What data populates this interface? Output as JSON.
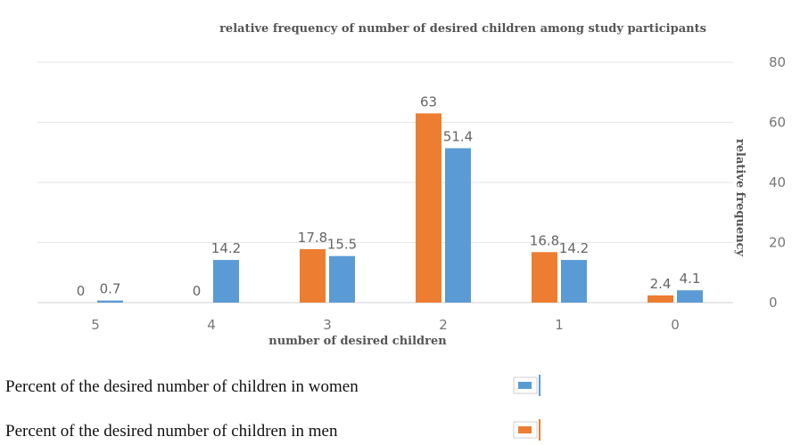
{
  "chart_data": {
    "type": "bar",
    "title": "relative frequency of number of desired children among study participants",
    "xlabel": "number of desired children",
    "ylabel": "relative frequency",
    "categories": [
      "5",
      "4",
      "3",
      "2",
      "1",
      "0"
    ],
    "ylim": [
      0,
      80
    ],
    "yticks": [
      0,
      20,
      40,
      60,
      80
    ],
    "series": [
      {
        "name": "Percent of the desired number of children in men",
        "color": "#ed7d31",
        "values": [
          0,
          0,
          17.8,
          63,
          16.8,
          2.4
        ],
        "labels": [
          "0",
          "0",
          "17.8",
          "63",
          "16.8",
          "2.4"
        ]
      },
      {
        "name": "Percent of the desired number of children in women",
        "color": "#5b9bd5",
        "values": [
          0.7,
          14.2,
          15.5,
          51.4,
          14.2,
          4.1
        ],
        "labels": [
          "0.7",
          "14.2",
          "15.5",
          "51.4",
          "14.2",
          "4.1"
        ]
      }
    ],
    "grid": true,
    "legend_position": "bottom-left"
  },
  "legend": {
    "items": [
      {
        "label": "Percent of the desired number of children in women",
        "color": "#5b9bd5"
      },
      {
        "label": "Percent of the desired number of children in men",
        "color": "#ed7d31"
      }
    ]
  }
}
